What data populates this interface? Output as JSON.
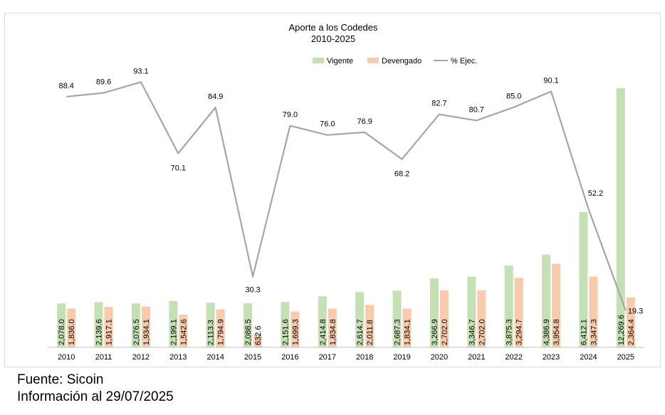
{
  "chart_data": {
    "type": "bar+line",
    "title": "Aporte a los Codedes",
    "subtitle": "2010-2025",
    "categories": [
      "2010",
      "2011",
      "2012",
      "2013",
      "2014",
      "2015",
      "2016",
      "2017",
      "2018",
      "2019",
      "2020",
      "2021",
      "2022",
      "2023",
      "2024",
      "2025"
    ],
    "series": [
      {
        "name": "Vigente",
        "type": "bar",
        "color": "#c5e0b4",
        "values": [
          2078.0,
          2139.6,
          2076.5,
          2199.1,
          2113.3,
          2088.5,
          2151.6,
          2414.8,
          2614.7,
          2687.3,
          3266.9,
          3346.7,
          3875.3,
          4386.9,
          6412.1,
          12269.6
        ],
        "labels": [
          "2,078.0",
          "2,139.6",
          "2,076.5",
          "2,199.1",
          "2,113.3",
          "2,088.5",
          "2,151.6",
          "2,414.8",
          "2,614.7",
          "2,687.3",
          "3,266.9",
          "3,346.7",
          "3,875.3",
          "4,386.9",
          "6,412.1",
          "12,269.6"
        ]
      },
      {
        "name": "Devengado",
        "type": "bar",
        "color": "#f8cbad",
        "values": [
          1836.0,
          1917.1,
          1934.1,
          1542.6,
          1794.9,
          632.6,
          1699.3,
          1834.8,
          2011.8,
          1834.1,
          2702.0,
          2702.0,
          3294.7,
          3954.8,
          3347.3,
          2364.4
        ],
        "labels": [
          "1,836.0",
          "1,917.1",
          "1,934.1",
          "1,542.6",
          "1,794.9",
          "632.6",
          "1,699.3",
          "1,834.8",
          "2,011.8",
          "1,834.1",
          "2,702.0",
          "2,702.0",
          "3,294.7",
          "3,954.8",
          "3,347.3",
          "2,364.4"
        ]
      },
      {
        "name": "% Ejec.",
        "type": "line",
        "color": "#a6a6a6",
        "values": [
          88.4,
          89.6,
          93.1,
          70.1,
          84.9,
          30.3,
          79.0,
          76.0,
          76.9,
          68.2,
          82.7,
          80.7,
          85.0,
          90.1,
          52.2,
          19.3
        ],
        "labels": [
          "88.4",
          "89.6",
          "93.1",
          "70.1",
          "84.9",
          "30.3",
          "79.0",
          "76.0",
          "76.9",
          "68.2",
          "82.7",
          "80.7",
          "85.0",
          "90.1",
          "52.2",
          "19.3"
        ]
      }
    ],
    "bar_axis_hidden": true,
    "bar_ylim": [
      0,
      15000
    ],
    "line_ylim": [
      0,
      120
    ],
    "legend_position": "top-center",
    "grid": false
  },
  "footer": {
    "source": "Fuente: Sicoin",
    "info": "Información al 29/07/2025"
  }
}
